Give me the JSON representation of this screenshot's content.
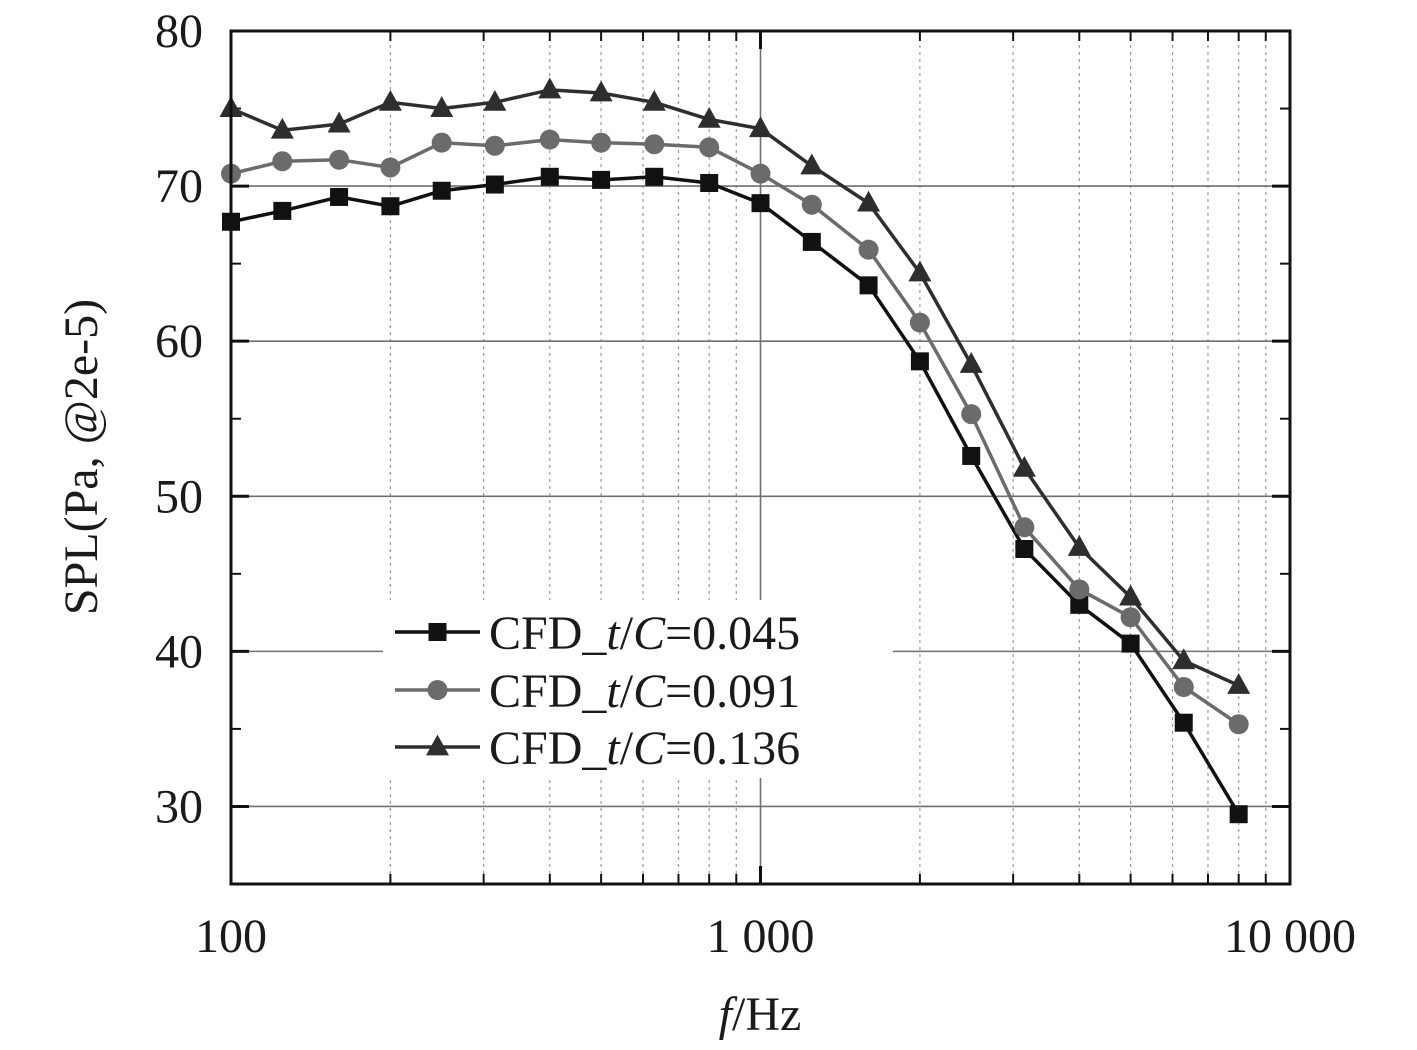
{
  "chart_data": {
    "type": "line",
    "xscale": "log",
    "xlim": [
      100,
      10000
    ],
    "ylim": [
      25,
      80
    ],
    "xticks": [
      100,
      1000,
      10000
    ],
    "xtick_labels": [
      "100",
      "1 000",
      "10 000"
    ],
    "yticks": [
      30,
      40,
      50,
      60,
      70,
      80
    ],
    "ytick_labels": [
      "30",
      "40",
      "50",
      "60",
      "70",
      "80"
    ],
    "xlabel": {
      "italic": "f",
      "rest": "/Hz"
    },
    "ylabel": "SPL(Pa, @2e-5)",
    "grid": true,
    "legend_position": "center-left",
    "x": [
      100,
      125,
      160,
      200,
      250,
      315,
      400,
      500,
      630,
      800,
      1000,
      1250,
      1600,
      2000,
      2500,
      3150,
      4000,
      5000,
      6300,
      8000
    ],
    "series": [
      {
        "name": "CFD_t/C=0.045",
        "legend": {
          "pre": "CFD_",
          "t": "t",
          "slash": "/",
          "c": "C",
          "post": "=0.045"
        },
        "marker": "square",
        "color": "#111111",
        "values": [
          67.7,
          68.4,
          69.3,
          68.7,
          69.7,
          70.1,
          70.6,
          70.4,
          70.6,
          70.2,
          68.9,
          66.4,
          63.6,
          58.7,
          52.6,
          46.6,
          43.0,
          40.5,
          35.4,
          29.5
        ]
      },
      {
        "name": "CFD_t/C=0.091",
        "legend": {
          "pre": "CFD_",
          "t": "t",
          "slash": "/",
          "c": "C",
          "post": "=0.091"
        },
        "marker": "circle",
        "color": "#6b6b6b",
        "values": [
          70.8,
          71.6,
          71.7,
          71.2,
          72.8,
          72.6,
          73.0,
          72.8,
          72.7,
          72.5,
          70.8,
          68.8,
          65.9,
          61.2,
          55.3,
          48.0,
          44.0,
          42.2,
          37.7,
          35.3
        ]
      },
      {
        "name": "CFD_t/C=0.136",
        "legend": {
          "pre": "CFD_",
          "t": "t",
          "slash": "/",
          "c": "C",
          "post": "=0.136"
        },
        "marker": "triangle",
        "color": "#2e2e2e",
        "values": [
          75.0,
          73.6,
          74.0,
          75.4,
          75.0,
          75.4,
          76.2,
          76.0,
          75.4,
          74.3,
          73.7,
          71.3,
          68.9,
          64.4,
          58.5,
          51.8,
          46.7,
          43.5,
          39.4,
          37.8
        ]
      }
    ]
  }
}
